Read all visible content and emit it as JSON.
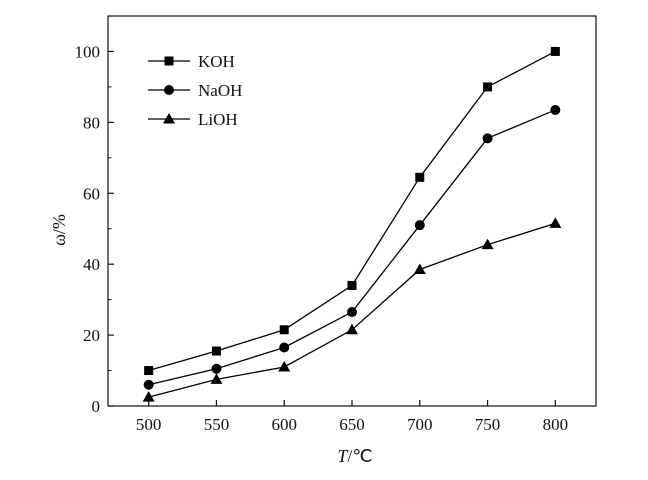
{
  "chart_data": {
    "type": "line",
    "title": "",
    "xlabel_italic": "T",
    "xlabel_unit": "/℃",
    "ylabel": "ω/%",
    "x": [
      500,
      550,
      600,
      650,
      700,
      750,
      800
    ],
    "xticks": [
      "500",
      "550",
      "600",
      "650",
      "700",
      "750",
      "800"
    ],
    "xlim": [
      470,
      830
    ],
    "yticks": [
      "0",
      "20",
      "40",
      "60",
      "80",
      "100"
    ],
    "ylim": [
      0,
      110
    ],
    "grid": false,
    "legend_position": "top-left",
    "series": [
      {
        "name": "KOH",
        "marker": "square",
        "values": [
          10,
          15.5,
          21.5,
          34,
          64.5,
          90,
          100
        ]
      },
      {
        "name": "NaOH",
        "marker": "circle",
        "values": [
          6,
          10.5,
          16.5,
          26.5,
          51,
          75.5,
          83.5
        ]
      },
      {
        "name": "LiOH",
        "marker": "triangle",
        "values": [
          2.5,
          7.5,
          11,
          21.5,
          38.5,
          45.5,
          51.5
        ]
      }
    ]
  }
}
